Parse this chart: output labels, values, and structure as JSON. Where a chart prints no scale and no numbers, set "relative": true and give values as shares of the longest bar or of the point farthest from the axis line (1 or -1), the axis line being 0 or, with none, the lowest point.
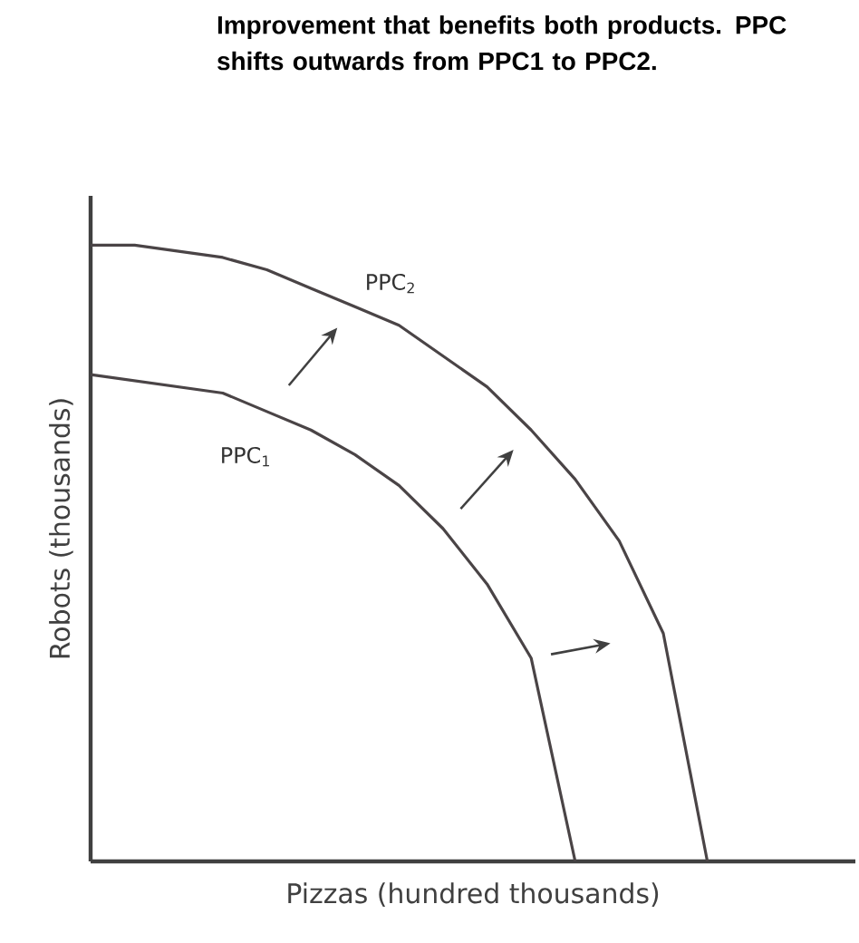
{
  "chart_data": {
    "type": "line",
    "relative": true,
    "title": "Improvement that benefits both products. PPC shifts outwards from PPC1 to PPC2.",
    "xlabel": "Pizzas (hundred thousands)",
    "ylabel": "Robots (thousands)",
    "categories": [
      null,
      null,
      null,
      null,
      null,
      null,
      null,
      null,
      null,
      null,
      null,
      null,
      null,
      null,
      null
    ],
    "series": [
      {
        "name": "PPC$_{1}$",
        "color": "#4a4446",
        "values": [
          0.79,
          0.78,
          0.77,
          0.76,
          0.73,
          0.7,
          0.66,
          0.61,
          0.54,
          0.45,
          0.33,
          0,
          null,
          null,
          null
        ]
      },
      {
        "name": "PPC$_{2}$",
        "color": "#4a4446",
        "values": [
          1,
          1,
          0.99,
          0.98,
          0.96,
          0.93,
          0.9,
          0.87,
          0.82,
          0.77,
          0.7,
          0.62,
          0.52,
          0.37,
          0
        ]
      }
    ],
    "legend": false,
    "marker": "none",
    "line_style": "solid"
  }
}
